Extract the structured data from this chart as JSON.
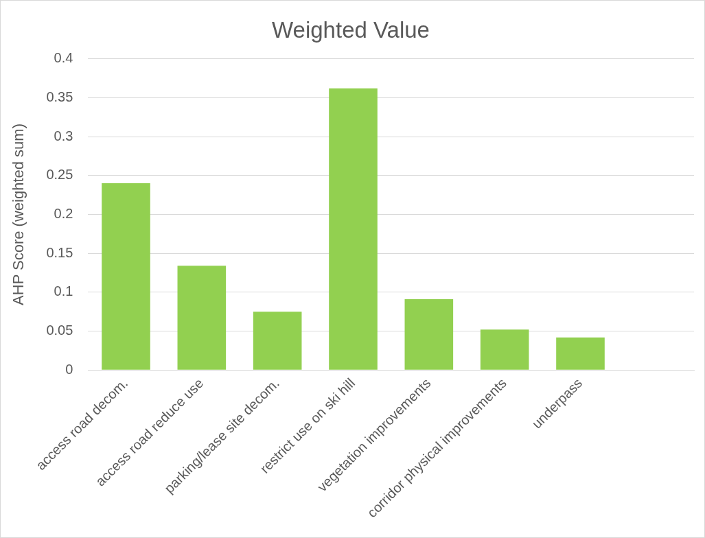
{
  "chart_data": {
    "type": "bar",
    "title": "Weighted Value",
    "ylabel": "AHP Score (weighted sum)",
    "categories": [
      "access road decom.",
      "access road reduce use",
      "parking/lease site decom.",
      "restrict use on ski hill",
      "vegetation improvements",
      "corridor physical improvements",
      "underpass",
      null
    ],
    "values": [
      0.24,
      0.134,
      0.075,
      0.362,
      0.091,
      0.052,
      0.042,
      null
    ],
    "color": "#92d050",
    "ylim": [
      0,
      0.4
    ],
    "yticks": [
      0,
      0.05,
      0.1,
      0.15,
      0.2,
      0.25,
      0.3,
      0.35,
      0.4
    ],
    "grid": "y",
    "legend": false
  }
}
